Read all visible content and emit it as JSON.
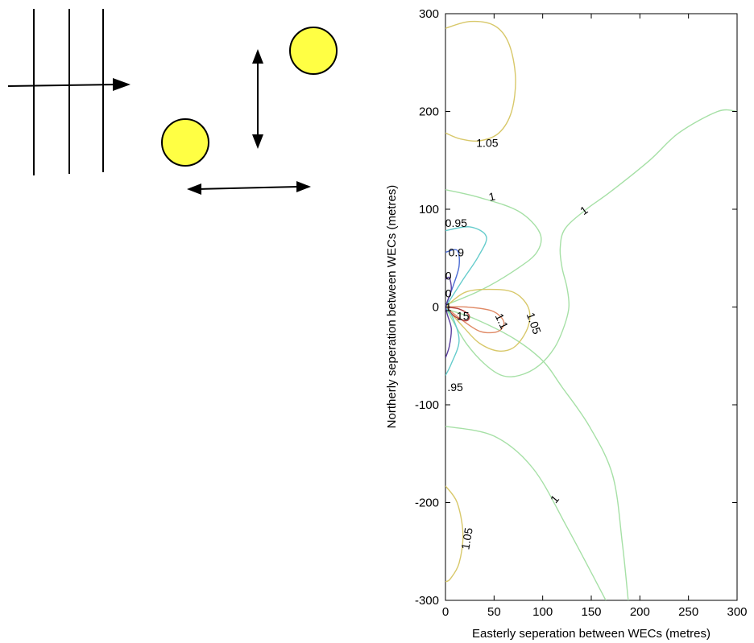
{
  "chart_data": {
    "type": "contour",
    "title": "",
    "xlabel": "Easterly seperation between WECs (metres)",
    "ylabel": "Northerly seperation between WECs (metres)",
    "xlim": [
      0,
      300
    ],
    "ylim": [
      -300,
      300
    ],
    "xticks": [
      0,
      50,
      100,
      150,
      200,
      250,
      300
    ],
    "yticks": [
      -300,
      -200,
      -100,
      0,
      100,
      200,
      300
    ],
    "grid": false,
    "contours": [
      {
        "level": "1.05",
        "color": "#d8c86a",
        "points": [
          [
            0,
            285
          ],
          [
            25,
            292
          ],
          [
            50,
            288
          ],
          [
            65,
            270
          ],
          [
            72,
            235
          ],
          [
            68,
            200
          ],
          [
            55,
            178
          ],
          [
            35,
            170
          ],
          [
            15,
            172
          ],
          [
            0,
            178
          ]
        ]
      },
      {
        "level": "1.05",
        "color": "#d8c86a",
        "points": [
          [
            0,
            -183
          ],
          [
            12,
            -200
          ],
          [
            18,
            -232
          ],
          [
            14,
            -262
          ],
          [
            5,
            -278
          ],
          [
            0,
            -281
          ]
        ]
      },
      {
        "level": "1",
        "color": "#a6e0a6",
        "points": [
          [
            0,
            120
          ],
          [
            35,
            112
          ],
          [
            75,
            98
          ],
          [
            97,
            76
          ],
          [
            94,
            56
          ],
          [
            72,
            38
          ],
          [
            36,
            17
          ],
          [
            0,
            2
          ]
        ]
      },
      {
        "level": "1",
        "color": "#a6e0a6",
        "points": [
          [
            0,
            -2
          ],
          [
            30,
            -12
          ],
          [
            70,
            -32
          ],
          [
            100,
            -55
          ],
          [
            120,
            -82
          ],
          [
            148,
            -122
          ],
          [
            172,
            -172
          ],
          [
            182,
            -242
          ],
          [
            188,
            -300
          ]
        ]
      },
      {
        "level": "1",
        "color": "#a6e0a6",
        "points": [
          [
            0,
            -122
          ],
          [
            50,
            -132
          ],
          [
            90,
            -165
          ],
          [
            125,
            -225
          ],
          [
            165,
            -300
          ]
        ]
      },
      {
        "level": "1",
        "color": "#a6e0a6",
        "points": [
          [
            300,
            200
          ],
          [
            280,
            200
          ],
          [
            240,
            178
          ],
          [
            210,
            150
          ],
          [
            170,
            118
          ],
          [
            145,
            100
          ],
          [
            123,
            80
          ],
          [
            118,
            60
          ],
          [
            120,
            40
          ],
          [
            125,
            20
          ],
          [
            127,
            0
          ],
          [
            122,
            -20
          ],
          [
            112,
            -42
          ],
          [
            96,
            -60
          ],
          [
            76,
            -70
          ],
          [
            58,
            -70
          ],
          [
            40,
            -58
          ],
          [
            22,
            -38
          ],
          [
            8,
            -15
          ],
          [
            0,
            0
          ]
        ]
      },
      {
        "level": "1.05",
        "color": "#d8c86a",
        "points": [
          [
            0,
            0
          ],
          [
            20,
            15
          ],
          [
            45,
            18
          ],
          [
            70,
            15
          ],
          [
            85,
            0
          ],
          [
            85,
            -20
          ],
          [
            72,
            -40
          ],
          [
            55,
            -45
          ],
          [
            35,
            -37
          ],
          [
            18,
            -20
          ],
          [
            0,
            0
          ]
        ]
      },
      {
        "level": "1.1",
        "color": "#e08a66",
        "points": [
          [
            0,
            0
          ],
          [
            22,
            0
          ],
          [
            48,
            -4
          ],
          [
            60,
            -15
          ],
          [
            54,
            -25
          ],
          [
            36,
            -25
          ],
          [
            18,
            -14
          ],
          [
            0,
            0
          ]
        ]
      },
      {
        "level": "1.15",
        "color": "#b04040",
        "points": [
          [
            0,
            0
          ],
          [
            14,
            -2
          ],
          [
            24,
            -8
          ],
          [
            22,
            -14
          ],
          [
            10,
            -10
          ],
          [
            0,
            0
          ]
        ]
      },
      {
        "level": "0.95",
        "color": "#66cccc",
        "points": [
          [
            0,
            78
          ],
          [
            25,
            82
          ],
          [
            42,
            72
          ],
          [
            34,
            52
          ],
          [
            18,
            28
          ],
          [
            0,
            0
          ]
        ]
      },
      {
        "level": "0.95",
        "color": "#66cccc",
        "points": [
          [
            0,
            -70
          ],
          [
            6,
            -58
          ],
          [
            14,
            -35
          ],
          [
            8,
            -12
          ],
          [
            0,
            0
          ]
        ]
      },
      {
        "level": "0.9",
        "color": "#4c6dd4",
        "points": [
          [
            0,
            56
          ],
          [
            12,
            58
          ],
          [
            14,
            42
          ],
          [
            8,
            22
          ],
          [
            0,
            0
          ]
        ]
      },
      {
        "level": "0.85",
        "color": "#5a3fa0",
        "points": [
          [
            0,
            28
          ],
          [
            4,
            30
          ],
          [
            6,
            18
          ],
          [
            2,
            6
          ],
          [
            0,
            0
          ]
        ]
      },
      {
        "level": "0.85",
        "color": "#5a3fa0",
        "points": [
          [
            0,
            -52
          ],
          [
            4,
            -40
          ],
          [
            6,
            -22
          ],
          [
            2,
            -8
          ],
          [
            0,
            0
          ]
        ]
      }
    ],
    "contour_labels": [
      {
        "text": "1.05",
        "x": 43,
        "y": 167,
        "angle": 0
      },
      {
        "text": "1",
        "x": 48,
        "y": 112,
        "angle": 12
      },
      {
        "text": "0.95",
        "x": 11,
        "y": 85,
        "angle": 0
      },
      {
        "text": "0.9",
        "x": 11,
        "y": 55,
        "angle": 0
      },
      {
        "text": "1",
        "x": 143,
        "y": 98,
        "angle": 35
      },
      {
        "text": "0",
        "x": 3,
        "y": 31,
        "angle": 0
      },
      {
        "text": "0",
        "x": 3,
        "y": 13,
        "angle": 0
      },
      {
        "text": "1",
        "x": 3,
        "y": -1,
        "angle": 0
      },
      {
        "text": "15",
        "x": 18,
        "y": -10,
        "angle": 0
      },
      {
        "text": "1.1",
        "x": 57,
        "y": -15,
        "angle": -65
      },
      {
        "text": "1.05",
        "x": 90,
        "y": -17,
        "angle": -70
      },
      {
        "text": ".95",
        "x": 10,
        "y": -83,
        "angle": 0
      },
      {
        "text": "1",
        "x": 113,
        "y": -197,
        "angle": 50
      },
      {
        "text": "1.05",
        "x": 23,
        "y": -237,
        "angle": 80
      }
    ]
  },
  "schematic": {
    "circle_color": "#ffff44"
  }
}
